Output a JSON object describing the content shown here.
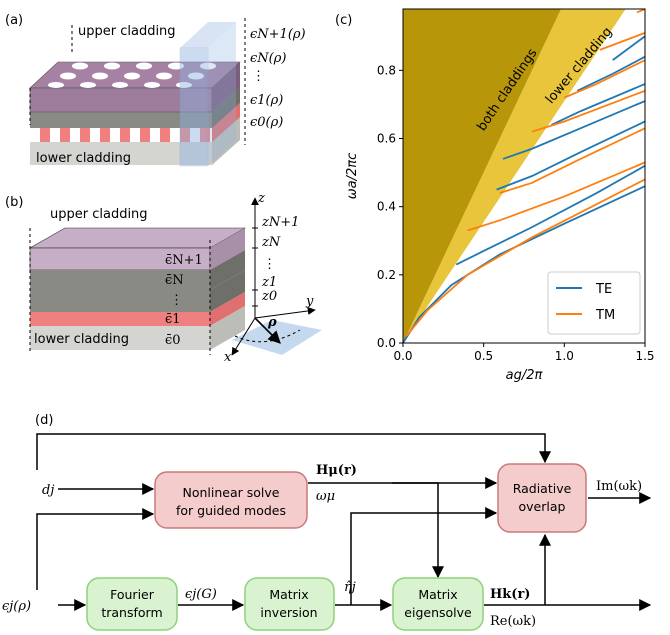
{
  "panels": {
    "a": {
      "label": "(a)",
      "upper_cladding": "upper cladding",
      "lower_cladding": "lower cladding",
      "eps_N1": "ϵN+1(ρ)",
      "eps_N": "ϵN(ρ)",
      "eps_1": "ϵ1(ρ)",
      "eps_0": "ϵ0(ρ)"
    },
    "b": {
      "label": "(b)",
      "upper_cladding": "upper cladding",
      "lower_cladding": "lower cladding",
      "eps_N1": "ϵ̄N+1",
      "eps_N": "ϵ̄N",
      "eps_1": "ϵ̄1",
      "eps_0": "ϵ̄0",
      "z": "z",
      "zN1": "zN+1",
      "zN": "zN",
      "z1": "z1",
      "z0": "z0",
      "x": "x",
      "y": "y",
      "rho": "ρ"
    },
    "c": {
      "label": "(c)",
      "region_both": "both claddings",
      "region_lower": "lower cladding"
    },
    "d": {
      "label": "(d)",
      "boxes": {
        "nonlinear": [
          "Nonlinear solve",
          "for guided modes"
        ],
        "radiative": [
          "Radiative",
          "overlap"
        ],
        "fourier": [
          "Fourier",
          "transform"
        ],
        "inversion": [
          "Matrix",
          "inversion"
        ],
        "eigensolve": [
          "Matrix",
          "eigensolve"
        ]
      },
      "inputs": {
        "dj": "dj",
        "eps_j": "ϵj(ρ)"
      },
      "edge_labels": {
        "H_mu": "Hμ(r)",
        "omega_mu": "ωμ",
        "Im": "Im(ωk)",
        "eps_jG": "ϵj(G)",
        "eta_j": "η̂j",
        "H_k": "Hk(r)",
        "Re": "Re(ωk)"
      }
    }
  },
  "colors": {
    "te": "#1f77b4",
    "tm": "#ff7f0e",
    "light_cone_dark": "#b8960a",
    "light_cone_light": "#e8c53a",
    "pink_box_fill": "#f4cccc",
    "pink_box_stroke": "#c97a7a",
    "green_box_fill": "#d9f2d0",
    "green_box_stroke": "#8fd17a"
  },
  "chart_data": {
    "type": "line",
    "title": "",
    "xlabel": "ag/2π",
    "ylabel": "ωa/2πc",
    "xlim": [
      0,
      1.5
    ],
    "ylim": [
      0,
      0.98
    ],
    "xticks": [
      "0.0",
      "0.5",
      "1.0",
      "1.5"
    ],
    "yticks": [
      "0.0",
      "0.2",
      "0.4",
      "0.6",
      "0.8"
    ],
    "legend": {
      "placement": "lower-right",
      "entries": [
        "TE",
        "TM"
      ]
    },
    "grid": false,
    "series": [
      {
        "name": "TE",
        "color": "#1f77b4",
        "branches": [
          [
            [
              0.0,
              0.0
            ],
            [
              0.1,
              0.075
            ],
            [
              0.3,
              0.17
            ],
            [
              0.6,
              0.26
            ],
            [
              1.0,
              0.35
            ],
            [
              1.5,
              0.46
            ]
          ],
          [
            [
              0.33,
              0.23
            ],
            [
              0.5,
              0.27
            ],
            [
              0.8,
              0.34
            ],
            [
              1.2,
              0.44
            ],
            [
              1.5,
              0.52
            ]
          ],
          [
            [
              0.58,
              0.45
            ],
            [
              0.8,
              0.49
            ],
            [
              1.1,
              0.56
            ],
            [
              1.5,
              0.65
            ]
          ],
          [
            [
              0.62,
              0.54
            ],
            [
              0.8,
              0.57
            ],
            [
              1.1,
              0.63
            ],
            [
              1.5,
              0.71
            ]
          ],
          [
            [
              0.92,
              0.64
            ],
            [
              1.1,
              0.68
            ],
            [
              1.5,
              0.76
            ]
          ],
          [
            [
              1.08,
              0.74
            ],
            [
              1.3,
              0.79
            ],
            [
              1.5,
              0.84
            ]
          ],
          [
            [
              1.3,
              0.83
            ],
            [
              1.5,
              0.9
            ]
          ]
        ]
      },
      {
        "name": "TM",
        "color": "#ff7f0e",
        "branches": [
          [
            [
              0.02,
              0.02
            ],
            [
              0.15,
              0.095
            ],
            [
              0.4,
              0.2
            ],
            [
              0.8,
              0.31
            ],
            [
              1.5,
              0.48
            ]
          ],
          [
            [
              0.4,
              0.33
            ],
            [
              0.6,
              0.36
            ],
            [
              1.0,
              0.43
            ],
            [
              1.5,
              0.53
            ]
          ],
          [
            [
              0.6,
              0.44
            ],
            [
              0.8,
              0.47
            ],
            [
              1.1,
              0.54
            ],
            [
              1.5,
              0.63
            ]
          ],
          [
            [
              0.8,
              0.62
            ],
            [
              1.0,
              0.65
            ],
            [
              1.5,
              0.74
            ]
          ],
          [
            [
              1.0,
              0.72
            ],
            [
              1.2,
              0.76
            ],
            [
              1.5,
              0.83
            ]
          ],
          [
            [
              1.22,
              0.86
            ],
            [
              1.5,
              0.91
            ]
          ],
          [
            [
              1.45,
              0.97
            ],
            [
              1.5,
              0.98
            ]
          ]
        ]
      }
    ]
  }
}
